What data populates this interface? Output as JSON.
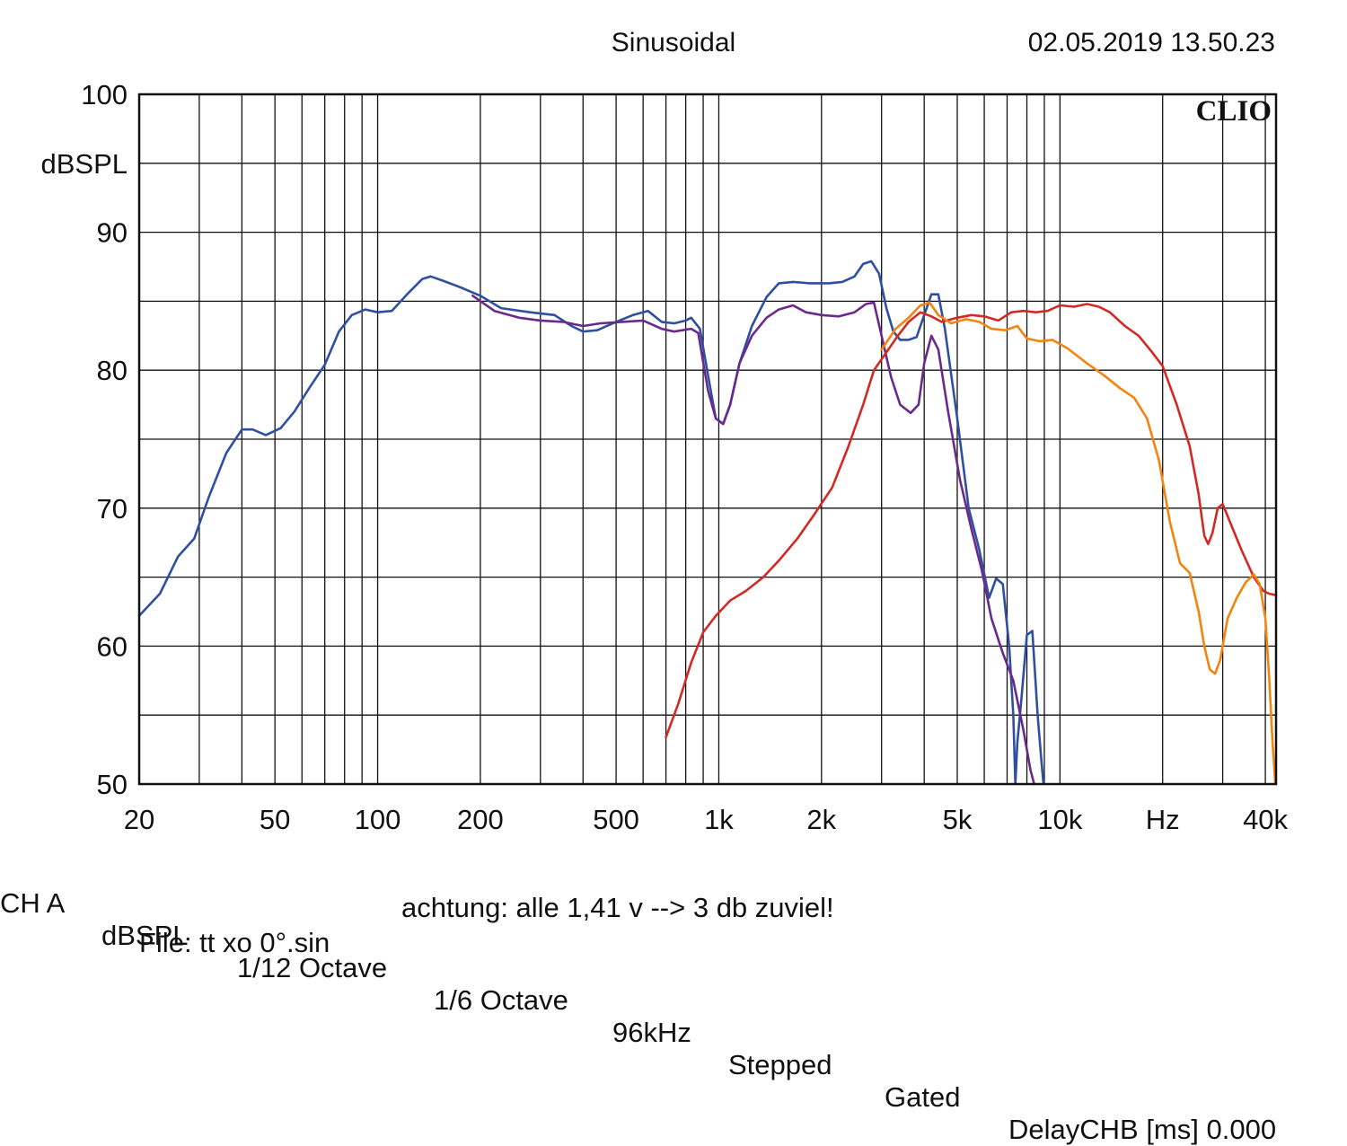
{
  "header": {
    "mode": "Sinusoidal",
    "datetime": "02.05.2019 13.50.23",
    "logo": "CLIO"
  },
  "footer": {
    "settings": [
      "CH A",
      "dBSPL",
      "1/12 Octave",
      "1/6 Octave",
      "96kHz",
      "Stepped",
      "Gated",
      "DelayCHB [ms] 0.000"
    ],
    "note": "achtung: alle 1,41 v --> 3 db zuviel!",
    "file": "File: tt xo 0°.sin"
  },
  "chart_data": {
    "type": "line",
    "x_scale": "log",
    "xlim": [
      20,
      43000
    ],
    "ylim": [
      50,
      100
    ],
    "grid": true,
    "ylabel": "dBSPL",
    "y_ticks": [
      {
        "v": 100,
        "label": "100"
      },
      {
        "v": 90,
        "label": "90"
      },
      {
        "v": 80,
        "label": "80"
      },
      {
        "v": 70,
        "label": "70"
      },
      {
        "v": 60,
        "label": "60"
      },
      {
        "v": 50,
        "label": "50"
      }
    ],
    "x_ticks": [
      {
        "v": 20,
        "label": "20"
      },
      {
        "v": 50,
        "label": "50"
      },
      {
        "v": 100,
        "label": "100"
      },
      {
        "v": 200,
        "label": "200"
      },
      {
        "v": 500,
        "label": "500"
      },
      {
        "v": 1000,
        "label": "1k"
      },
      {
        "v": 2000,
        "label": "2k"
      },
      {
        "v": 5000,
        "label": "5k"
      },
      {
        "v": 10000,
        "label": "10k"
      },
      {
        "v": 20000,
        "label": "Hz"
      },
      {
        "v": 40000,
        "label": "40k"
      }
    ],
    "series": [
      {
        "color": "#2f4fa0",
        "points": [
          [
            20,
            62.2
          ],
          [
            23,
            63.8
          ],
          [
            26,
            66.5
          ],
          [
            29,
            67.8
          ],
          [
            32,
            70.8
          ],
          [
            36,
            74
          ],
          [
            40,
            75.7
          ],
          [
            43,
            75.7
          ],
          [
            47,
            75.3
          ],
          [
            52,
            75.8
          ],
          [
            57,
            77
          ],
          [
            63,
            78.7
          ],
          [
            70,
            80.4
          ],
          [
            77,
            82.8
          ],
          [
            84,
            84
          ],
          [
            92,
            84.4
          ],
          [
            100,
            84.2
          ],
          [
            110,
            84.3
          ],
          [
            122,
            85.5
          ],
          [
            135,
            86.6
          ],
          [
            143,
            86.8
          ],
          [
            155,
            86.5
          ],
          [
            175,
            86
          ],
          [
            200,
            85.4
          ],
          [
            230,
            84.5
          ],
          [
            280,
            84.2
          ],
          [
            330,
            84
          ],
          [
            370,
            83.2
          ],
          [
            400,
            82.8
          ],
          [
            440,
            82.9
          ],
          [
            500,
            83.5
          ],
          [
            560,
            84
          ],
          [
            620,
            84.3
          ],
          [
            680,
            83.5
          ],
          [
            740,
            83.4
          ],
          [
            800,
            83.6
          ],
          [
            830,
            83.8
          ],
          [
            880,
            83
          ],
          [
            940,
            79
          ],
          [
            980,
            76.5
          ],
          [
            1030,
            76.1
          ],
          [
            1080,
            77.5
          ],
          [
            1150,
            80.5
          ],
          [
            1250,
            83.2
          ],
          [
            1380,
            85.3
          ],
          [
            1500,
            86.3
          ],
          [
            1650,
            86.4
          ],
          [
            1850,
            86.3
          ],
          [
            2100,
            86.3
          ],
          [
            2300,
            86.4
          ],
          [
            2500,
            86.8
          ],
          [
            2650,
            87.7
          ],
          [
            2800,
            87.9
          ],
          [
            2950,
            87
          ],
          [
            3100,
            84.5
          ],
          [
            3250,
            82.8
          ],
          [
            3400,
            82.2
          ],
          [
            3600,
            82.2
          ],
          [
            3800,
            82.4
          ],
          [
            4000,
            84
          ],
          [
            4200,
            85.5
          ],
          [
            4400,
            85.5
          ],
          [
            4600,
            83
          ],
          [
            5000,
            76.5
          ],
          [
            5400,
            70
          ],
          [
            5800,
            67
          ],
          [
            6200,
            63.5
          ],
          [
            6500,
            64.9
          ],
          [
            6800,
            64.5
          ],
          [
            7100,
            60
          ],
          [
            7300,
            55
          ],
          [
            7400,
            50
          ],
          [
            7500,
            53
          ],
          [
            7700,
            56
          ],
          [
            8000,
            60.8
          ],
          [
            8300,
            61.1
          ],
          [
            8600,
            55
          ],
          [
            8800,
            52
          ],
          [
            8950,
            50
          ]
        ]
      },
      {
        "color": "#6a2a8c",
        "points": [
          [
            190,
            85.4
          ],
          [
            220,
            84.3
          ],
          [
            260,
            83.8
          ],
          [
            300,
            83.6
          ],
          [
            350,
            83.5
          ],
          [
            400,
            83.2
          ],
          [
            450,
            83.4
          ],
          [
            520,
            83.5
          ],
          [
            600,
            83.6
          ],
          [
            680,
            83
          ],
          [
            740,
            82.8
          ],
          [
            830,
            83
          ],
          [
            870,
            82.7
          ],
          [
            930,
            78.5
          ],
          [
            980,
            76.5
          ],
          [
            1030,
            76.1
          ],
          [
            1080,
            77.5
          ],
          [
            1150,
            80.5
          ],
          [
            1250,
            82.5
          ],
          [
            1380,
            83.8
          ],
          [
            1500,
            84.4
          ],
          [
            1650,
            84.7
          ],
          [
            1800,
            84.2
          ],
          [
            2000,
            84
          ],
          [
            2250,
            83.9
          ],
          [
            2500,
            84.2
          ],
          [
            2700,
            84.8
          ],
          [
            2850,
            84.9
          ],
          [
            3000,
            82.5
          ],
          [
            3200,
            79.5
          ],
          [
            3400,
            77.5
          ],
          [
            3650,
            76.9
          ],
          [
            3850,
            77.5
          ],
          [
            4000,
            80.5
          ],
          [
            4200,
            82.5
          ],
          [
            4400,
            81.5
          ],
          [
            4700,
            77
          ],
          [
            5100,
            72
          ],
          [
            5500,
            68.5
          ],
          [
            5900,
            65.5
          ],
          [
            6300,
            62
          ],
          [
            6800,
            59.5
          ],
          [
            7300,
            57.5
          ],
          [
            7800,
            54
          ],
          [
            8200,
            51
          ],
          [
            8400,
            50
          ]
        ]
      },
      {
        "color": "#d12a24",
        "points": [
          [
            700,
            53.4
          ],
          [
            760,
            55.8
          ],
          [
            830,
            58.8
          ],
          [
            900,
            61
          ],
          [
            980,
            62.2
          ],
          [
            1080,
            63.3
          ],
          [
            1200,
            64
          ],
          [
            1350,
            65
          ],
          [
            1500,
            66.2
          ],
          [
            1700,
            67.8
          ],
          [
            1900,
            69.5
          ],
          [
            2150,
            71.5
          ],
          [
            2400,
            74.5
          ],
          [
            2650,
            77.5
          ],
          [
            2850,
            80
          ],
          [
            3100,
            81.3
          ],
          [
            3350,
            82.5
          ],
          [
            3600,
            83.5
          ],
          [
            3900,
            84.2
          ],
          [
            4200,
            83.9
          ],
          [
            4500,
            83.5
          ],
          [
            5000,
            83.8
          ],
          [
            5500,
            84
          ],
          [
            6000,
            83.9
          ],
          [
            6600,
            83.6
          ],
          [
            7200,
            84.2
          ],
          [
            7800,
            84.3
          ],
          [
            8500,
            84.2
          ],
          [
            9200,
            84.3
          ],
          [
            10000,
            84.7
          ],
          [
            11000,
            84.6
          ],
          [
            12000,
            84.8
          ],
          [
            13000,
            84.6
          ],
          [
            14000,
            84.2
          ],
          [
            15500,
            83.2
          ],
          [
            17000,
            82.5
          ],
          [
            18500,
            81.4
          ],
          [
            20000,
            80.3
          ],
          [
            22000,
            77.5
          ],
          [
            24000,
            74.5
          ],
          [
            25500,
            71
          ],
          [
            26500,
            68
          ],
          [
            27200,
            67.4
          ],
          [
            28000,
            68.2
          ],
          [
            29000,
            70
          ],
          [
            30000,
            70.3
          ],
          [
            31500,
            69
          ],
          [
            34000,
            67
          ],
          [
            37000,
            65
          ],
          [
            39500,
            64
          ],
          [
            41000,
            63.8
          ],
          [
            43000,
            63.7
          ]
        ]
      },
      {
        "color": "#f2840f",
        "points": [
          [
            3000,
            81.5
          ],
          [
            3300,
            83
          ],
          [
            3600,
            83.8
          ],
          [
            3900,
            84.7
          ],
          [
            4150,
            84.9
          ],
          [
            4400,
            84
          ],
          [
            4800,
            83.4
          ],
          [
            5300,
            83.7
          ],
          [
            5800,
            83.5
          ],
          [
            6300,
            83
          ],
          [
            6900,
            82.9
          ],
          [
            7500,
            83.2
          ],
          [
            8000,
            82.3
          ],
          [
            8700,
            82.1
          ],
          [
            9500,
            82.2
          ],
          [
            10500,
            81.6
          ],
          [
            12000,
            80.5
          ],
          [
            13500,
            79.6
          ],
          [
            15000,
            78.7
          ],
          [
            16500,
            78
          ],
          [
            18000,
            76.5
          ],
          [
            19500,
            73.5
          ],
          [
            21000,
            69
          ],
          [
            22500,
            66
          ],
          [
            24000,
            65.3
          ],
          [
            25500,
            62.5
          ],
          [
            26500,
            60
          ],
          [
            27500,
            58.3
          ],
          [
            28500,
            58
          ],
          [
            29500,
            59
          ],
          [
            31000,
            62
          ],
          [
            33000,
            63.5
          ],
          [
            35000,
            64.6
          ],
          [
            37000,
            65.2
          ],
          [
            38500,
            64.5
          ],
          [
            40000,
            62
          ],
          [
            41000,
            58
          ],
          [
            42000,
            53
          ],
          [
            42800,
            50
          ]
        ]
      }
    ]
  }
}
